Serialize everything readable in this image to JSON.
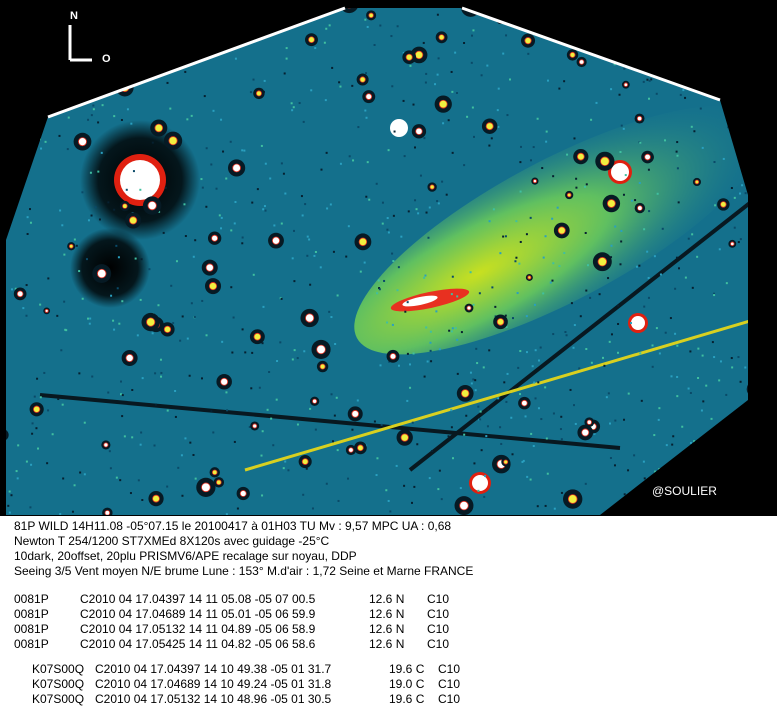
{
  "image": {
    "compass_north": "N",
    "compass_west": "O",
    "credit": "@SOULIER"
  },
  "caption": [
    "81P WILD 14H11.08 -05°07.15 le 20100417 à 01H03 TU Mv : 9,57 MPC UA : 0,68",
    "Newton T 254/1200 ST7XMEd 8X120s avec guidage -25°C",
    "10dark, 20offset, 20plu PRISMV6/APE recalage sur noyau, DDP",
    "Seeing 3/5 Vent moyen N/E brume Lune : 153° M.d'air : 1,72 Seine et Marne FRANCE"
  ],
  "observations_comet": [
    [
      "0081P",
      "C2010 04 17.04397 14 11 05.08 -05 07 00.5",
      "12.6 N",
      "C10"
    ],
    [
      "0081P",
      "C2010 04 17.04689 14 11 05.01 -05 06 59.9",
      "12.6 N",
      "C10"
    ],
    [
      "0081P",
      "C2010 04 17.05132 14 11 04.89 -05 06 58.9",
      "12.6 N",
      "C10"
    ],
    [
      "0081P",
      "C2010 04 17.05425 14 11 04.82 -05 06 58.6",
      "12.6 N",
      "C10"
    ]
  ],
  "observations_asteroid": [
    [
      "K07S00Q",
      "C2010 04 17.04397 14 10 49.38 -05 01 31.7",
      "19.6 C",
      "C10"
    ],
    [
      "K07S00Q",
      "C2010 04 17.04689 14 10 49.24 -05 01 31.8",
      "19.0 C",
      "C10"
    ],
    [
      "K07S00Q",
      "C2010 04 17.05132 14 10 48.96 -05 01 30.5",
      "19.6 C",
      "C10"
    ]
  ]
}
